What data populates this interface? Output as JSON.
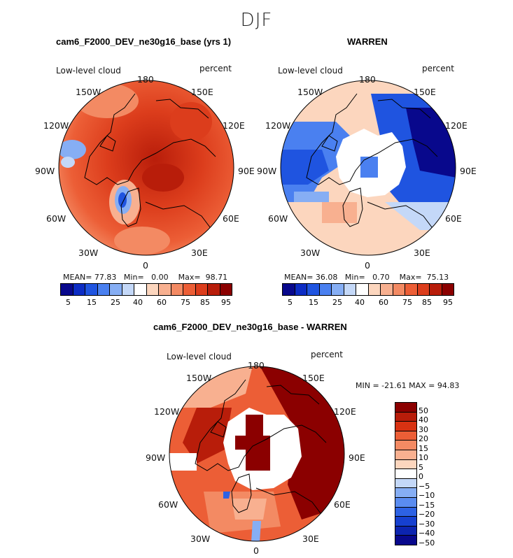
{
  "figure": {
    "title": "DJF"
  },
  "panels": [
    {
      "id": "model",
      "title": "cam6_F2000_DEV_ne30g16_base (yrs 1)",
      "variable": "Low-level cloud",
      "units": "percent",
      "stats": {
        "mean_label": "MEAN=",
        "mean": "77.83",
        "min_label": "Min=",
        "min": "0.00",
        "max_label": "Max=",
        "max": "98.71"
      },
      "colorbar_ticks": [
        "5",
        "15",
        "25",
        "40",
        "60",
        "75",
        "85",
        "95"
      ]
    },
    {
      "id": "obs",
      "title": "WARREN",
      "variable": "Low-level cloud",
      "units": "percent",
      "stats": {
        "mean_label": "MEAN=",
        "mean": "36.08",
        "min_label": "Min=",
        "min": "0.70",
        "max_label": "Max=",
        "max": "75.13"
      },
      "colorbar_ticks": [
        "5",
        "15",
        "25",
        "40",
        "60",
        "75",
        "85",
        "95"
      ]
    },
    {
      "id": "diff",
      "title": "cam6_F2000_DEV_ne30g16_base - WARREN",
      "variable": "Low-level cloud",
      "units": "percent",
      "stats_text": "MIN = -21.61 MAX =   94.83",
      "colorbar_ticks": [
        "50",
        "40",
        "30",
        "20",
        "15",
        "10",
        "5",
        "0",
        "−5",
        "−10",
        "−15",
        "−20",
        "−30",
        "−40",
        "−50"
      ]
    }
  ],
  "longitude_labels": [
    "180",
    "150E",
    "120E",
    "90E",
    "60E",
    "30E",
    "0",
    "30W",
    "60W",
    "90W",
    "120W",
    "150W"
  ],
  "colors": {
    "abs_scale": [
      "#08088c",
      "#0c2cc4",
      "#1f54e0",
      "#4a80f0",
      "#86aef4",
      "#c4d8f8",
      "#ffffff",
      "#fcd6be",
      "#f8b090",
      "#f38a63",
      "#ec5e36",
      "#dc3d1c",
      "#b81d0a",
      "#8b0000"
    ],
    "diff_scale": [
      "#8b0000",
      "#b81d0a",
      "#d83212",
      "#ec5e36",
      "#f38a63",
      "#f8b090",
      "#fcd6be",
      "#ffffff",
      "#c4d8f8",
      "#86aef4",
      "#5a8cf0",
      "#2d62e4",
      "#1640d0",
      "#0c24b0",
      "#08088c"
    ]
  }
}
